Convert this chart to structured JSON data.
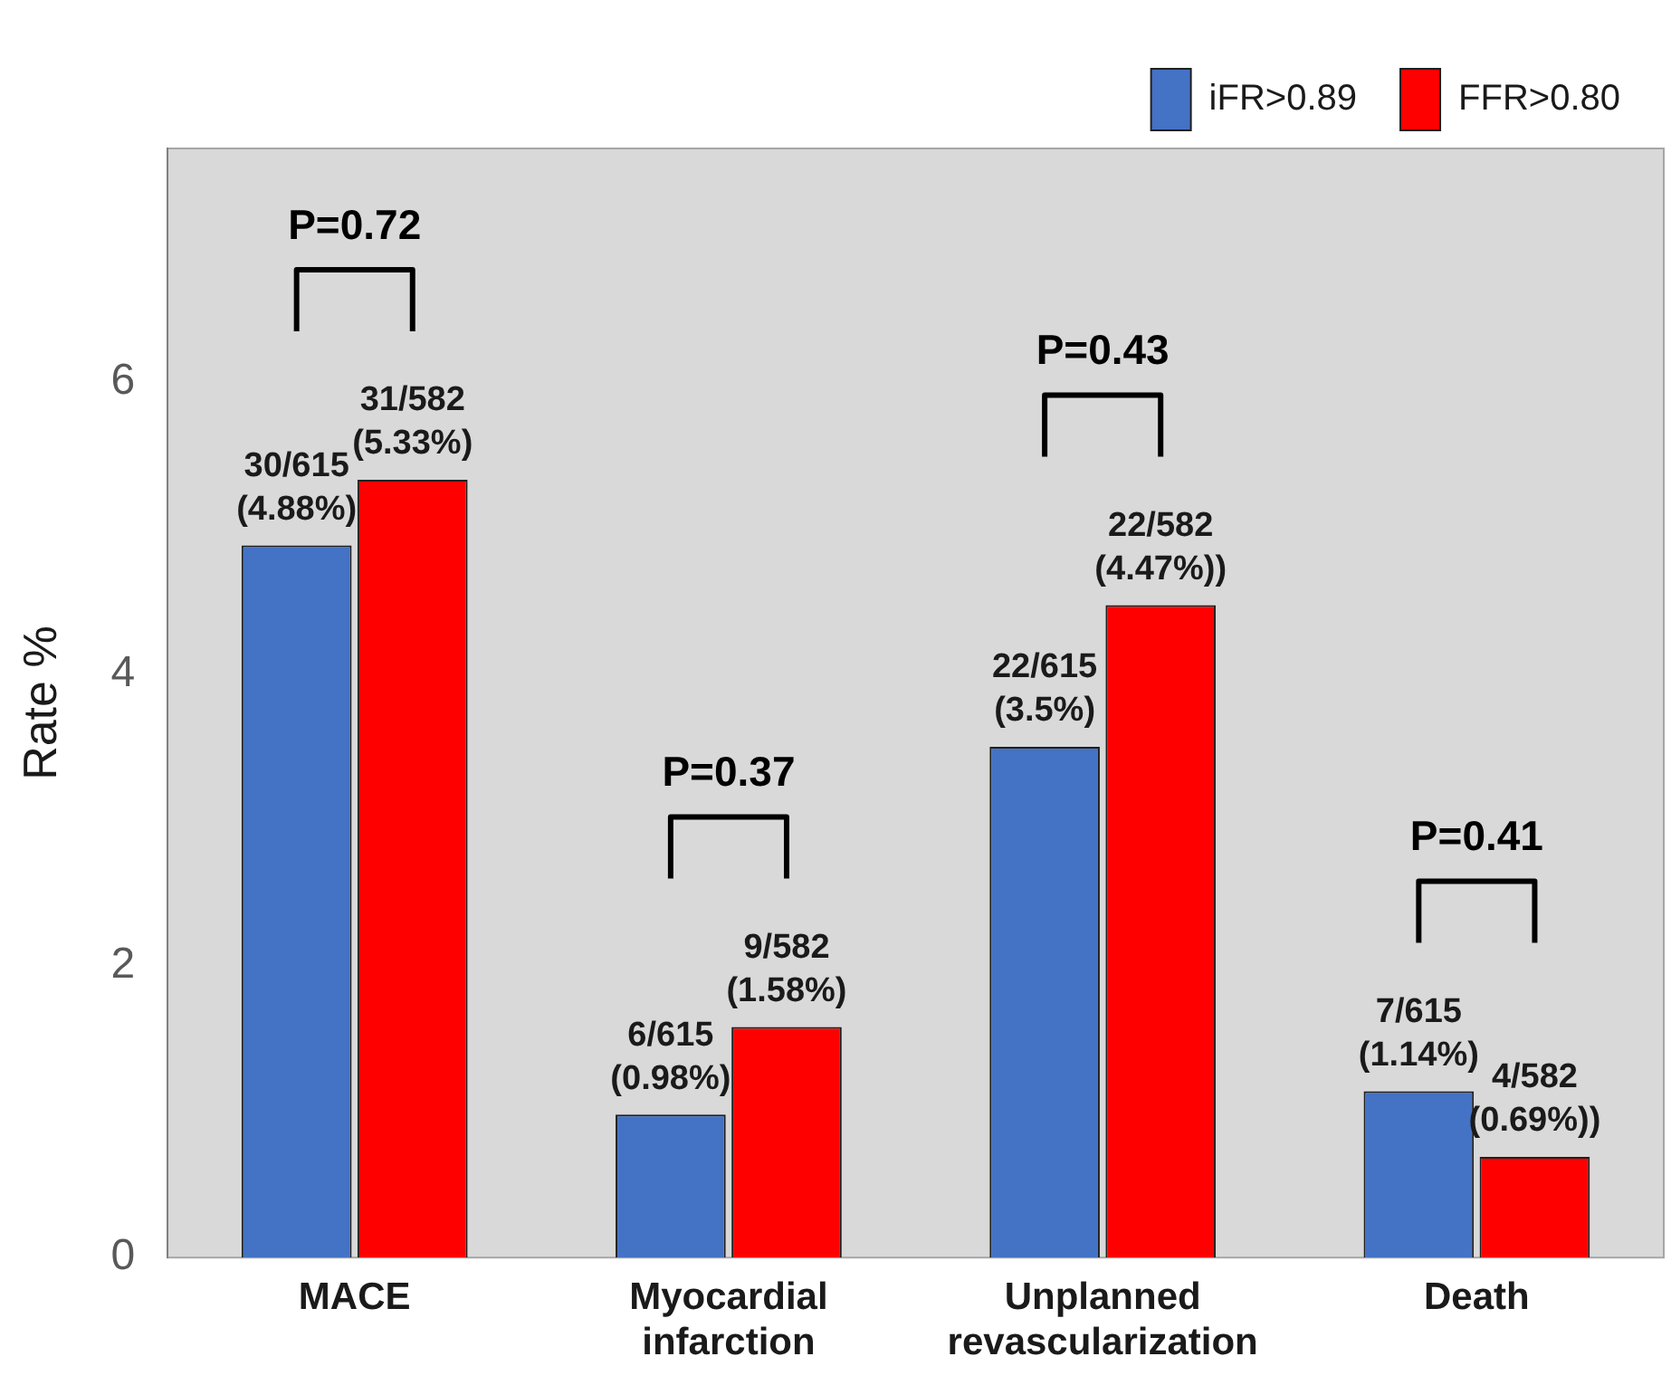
{
  "chart_data": {
    "type": "bar",
    "ylabel": "Rate %",
    "categories": [
      "MACE",
      "Myocardial infarction",
      "Unplanned revascularization",
      "Death"
    ],
    "series": [
      {
        "name": "iFR>0.89",
        "color": "#4472c4",
        "values": [
          4.88,
          0.98,
          3.5,
          1.14
        ],
        "value_labels": [
          "30/615 (4.88%)",
          "6/615 (0.98%)",
          "22/615 (3.5%)",
          "7/615 (1.14%)"
        ]
      },
      {
        "name": "FFR>0.80",
        "color": "#ff0000",
        "values": [
          5.33,
          1.58,
          4.47,
          0.69
        ],
        "value_labels": [
          "31/582 (5.33%)",
          "9/582 (1.58%)",
          "22/582 (4.47%))",
          "4/582 (0.69%))"
        ]
      }
    ],
    "ylim": [
      0,
      7.6
    ],
    "yticks": [
      0,
      2,
      4,
      6
    ],
    "grid": false,
    "legend": "top right",
    "annotations": [
      "P=0.72",
      "P=0.37",
      "P=0.43",
      "P=0.41"
    ]
  }
}
